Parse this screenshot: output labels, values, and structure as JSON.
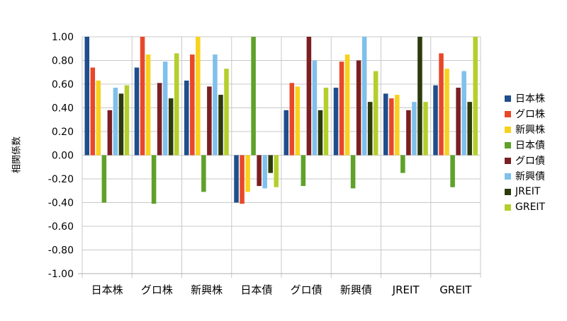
{
  "chart_data": {
    "type": "bar",
    "title": "",
    "xlabel": "",
    "ylabel": "相関係数",
    "ylim": [
      -1.0,
      1.0
    ],
    "yticks": [
      "1.00",
      "0.80",
      "0.60",
      "0.40",
      "0.20",
      "0.00",
      "-0.20",
      "-0.40",
      "-0.60",
      "-0.80",
      "-1.00"
    ],
    "grid": true,
    "legend_position": "right",
    "categories": [
      "日本株",
      "グロ株",
      "新興株",
      "日本債",
      "グロ債",
      "新興債",
      "JREIT",
      "GREIT"
    ],
    "series": [
      {
        "name": "日本株",
        "color": "#1f4e8c",
        "values": [
          1.0,
          0.74,
          0.63,
          -0.4,
          0.38,
          0.57,
          0.52,
          0.59
        ]
      },
      {
        "name": "グロ株",
        "color": "#e8482a",
        "values": [
          0.74,
          1.0,
          0.85,
          -0.41,
          0.61,
          0.79,
          0.48,
          0.86
        ]
      },
      {
        "name": "新興株",
        "color": "#f7d11e",
        "values": [
          0.63,
          0.85,
          1.0,
          -0.31,
          0.58,
          0.85,
          0.51,
          0.73
        ]
      },
      {
        "name": "日本債",
        "color": "#5fa12a",
        "values": [
          -0.4,
          -0.41,
          -0.31,
          1.0,
          -0.26,
          -0.28,
          -0.15,
          -0.27
        ]
      },
      {
        "name": "グロ債",
        "color": "#7b1f22",
        "values": [
          0.38,
          0.61,
          0.58,
          -0.26,
          1.0,
          0.8,
          0.38,
          0.57
        ]
      },
      {
        "name": "新興債",
        "color": "#80c0ec",
        "values": [
          0.57,
          0.79,
          0.85,
          -0.28,
          0.8,
          1.0,
          0.45,
          0.71
        ]
      },
      {
        "name": "JREIT",
        "color": "#2c3a0e",
        "values": [
          0.52,
          0.48,
          0.51,
          -0.15,
          0.38,
          0.45,
          1.0,
          0.45
        ]
      },
      {
        "name": "GREIT",
        "color": "#b4cf2c",
        "values": [
          0.59,
          0.86,
          0.73,
          -0.27,
          0.57,
          0.71,
          0.45,
          1.0
        ]
      }
    ]
  }
}
